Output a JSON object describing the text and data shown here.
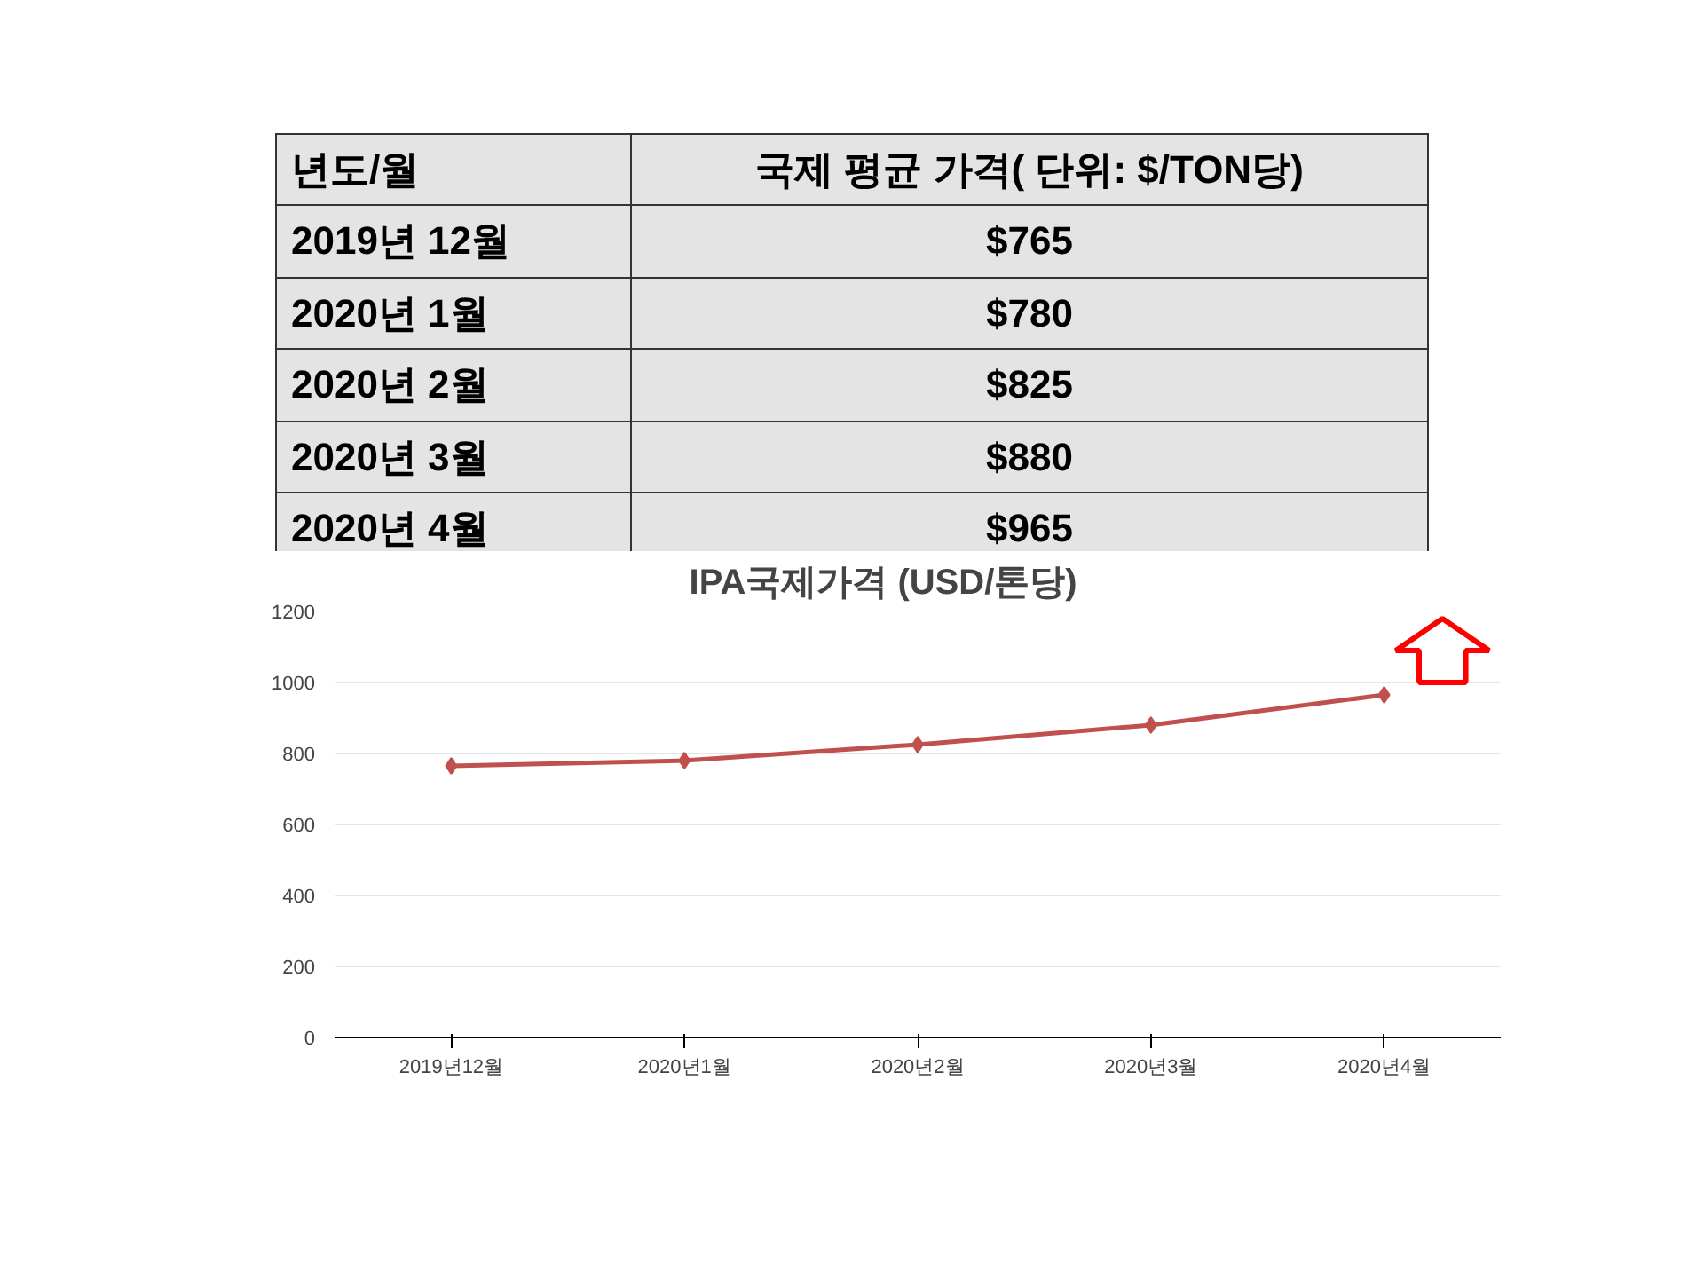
{
  "chart_data": {
    "type": "line",
    "title": "IPA국제가격        (USD/톤당)",
    "categories": [
      "2019년12월",
      "2020년1월",
      "2020년2월",
      "2020년3월",
      "2020년4월"
    ],
    "series": [
      {
        "color": "#c0504d",
        "values": [
          765,
          780,
          825,
          880,
          965
        ]
      }
    ],
    "value_labels": [
      "$765",
      "$780",
      "$825",
      "$880",
      "$965"
    ],
    "annotations": [
      "년도/월",
      "국제 평균 가격( 단위: $/TON당)",
      "2019년 12월",
      "2020년 1월",
      "2020년 2월",
      "2020년 3월",
      "2020년 4월"
    ],
    "ylim": [
      0,
      1200
    ],
    "yticks": [
      0,
      200,
      400,
      600,
      800,
      1000,
      1200
    ],
    "grid": "y",
    "marker": "diamond",
    "line_style": "solid"
  }
}
